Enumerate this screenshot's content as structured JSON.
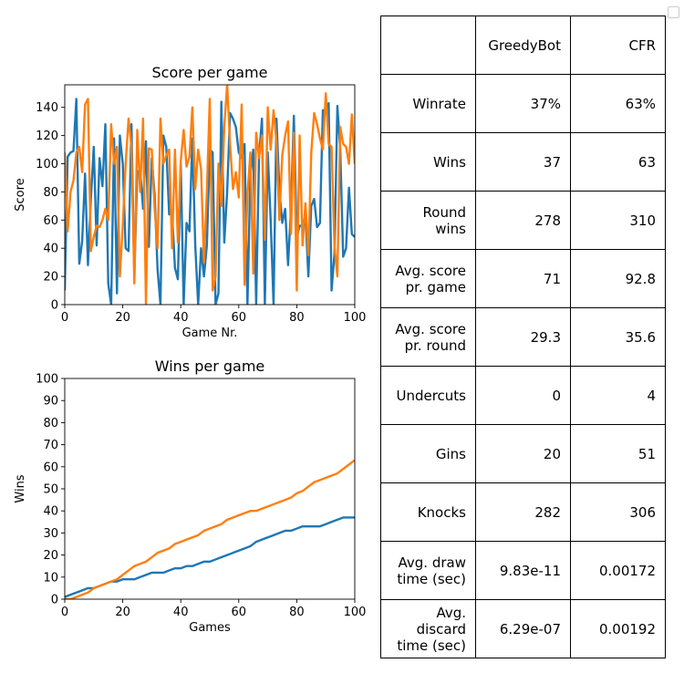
{
  "colors": {
    "greedybot": "#1f77b4",
    "cfr": "#ff7f0e"
  },
  "chart_data": [
    {
      "type": "line",
      "title": "Score per game",
      "xlabel": "Game Nr.",
      "ylabel": "Score",
      "xlim": [
        0,
        100
      ],
      "ylim": [
        0,
        156
      ],
      "xticks": [
        0,
        20,
        40,
        60,
        80,
        100
      ],
      "yticks": [
        0,
        20,
        40,
        60,
        80,
        100,
        120,
        140
      ],
      "grid": false,
      "series": [
        {
          "key": "greedybot",
          "x": [
            0,
            1,
            2,
            3,
            4,
            5,
            6,
            7,
            8,
            9,
            10,
            11,
            12,
            13,
            14,
            15,
            16,
            17,
            18,
            19,
            20,
            21,
            22,
            23,
            24,
            25,
            26,
            27,
            28,
            29,
            30,
            31,
            32,
            33,
            34,
            35,
            36,
            37,
            38,
            39,
            40,
            41,
            42,
            43,
            44,
            45,
            46,
            47,
            48,
            49,
            50,
            51,
            52,
            53,
            54,
            55,
            56,
            57,
            58,
            59,
            60,
            61,
            62,
            63,
            64,
            65,
            66,
            67,
            68,
            69,
            70,
            71,
            72,
            73,
            74,
            75,
            76,
            77,
            78,
            79,
            80,
            81,
            82,
            83,
            84,
            85,
            86,
            87,
            88,
            89,
            90,
            91,
            92,
            93,
            94,
            95,
            96,
            97,
            98,
            99,
            100
          ],
          "y": [
            10,
            105,
            108,
            109,
            146,
            29,
            45,
            93,
            28,
            75,
            112,
            42,
            104,
            84,
            128,
            15,
            0,
            118,
            8,
            120,
            100,
            40,
            38,
            128,
            20,
            94,
            96,
            68,
            116,
            41,
            104,
            78,
            25,
            0,
            120,
            112,
            64,
            66,
            26,
            18,
            100,
            0,
            58,
            52,
            118,
            42,
            0,
            40,
            20,
            42,
            110,
            108,
            0,
            8,
            144,
            44,
            80,
            136,
            132,
            126,
            108,
            104,
            114,
            0,
            92,
            110,
            0,
            106,
            132,
            0,
            108,
            60,
            0,
            132,
            82,
            58,
            68,
            28,
            68,
            134,
            48,
            56,
            56,
            64,
            20,
            70,
            75,
            55,
            58,
            138,
            138,
            143,
            10,
            36,
            141,
            110,
            34,
            40,
            83,
            50,
            48
          ]
        },
        {
          "key": "cfr",
          "x": [
            0,
            1,
            2,
            3,
            4,
            5,
            6,
            7,
            8,
            9,
            10,
            11,
            12,
            13,
            14,
            15,
            16,
            17,
            18,
            19,
            20,
            21,
            22,
            23,
            24,
            25,
            26,
            27,
            28,
            29,
            30,
            31,
            32,
            33,
            34,
            35,
            36,
            37,
            38,
            39,
            40,
            41,
            42,
            43,
            44,
            45,
            46,
            47,
            48,
            49,
            50,
            51,
            52,
            53,
            54,
            55,
            56,
            57,
            58,
            59,
            60,
            61,
            62,
            63,
            64,
            65,
            66,
            67,
            68,
            69,
            70,
            71,
            72,
            73,
            74,
            75,
            76,
            77,
            78,
            79,
            80,
            81,
            82,
            83,
            84,
            85,
            86,
            87,
            88,
            89,
            90,
            91,
            92,
            93,
            94,
            95,
            96,
            97,
            98,
            99,
            100
          ],
          "y": [
            108,
            52,
            80,
            88,
            108,
            112,
            94,
            142,
            146,
            38,
            48,
            56,
            55,
            60,
            68,
            60,
            128,
            100,
            112,
            20,
            56,
            100,
            132,
            112,
            15,
            124,
            80,
            132,
            0,
            111,
            110,
            68,
            40,
            132,
            100,
            106,
            110,
            40,
            110,
            44,
            102,
            124,
            98,
            105,
            140,
            82,
            110,
            96,
            30,
            80,
            146,
            10,
            20,
            100,
            70,
            126,
            156,
            114,
            82,
            94,
            76,
            142,
            14,
            78,
            108,
            22,
            122,
            104,
            120,
            46,
            140,
            110,
            138,
            116,
            60,
            106,
            120,
            130,
            50,
            122,
            10,
            120,
            42,
            72,
            35,
            108,
            136,
            128,
            118,
            110,
            150,
            114,
            112,
            42,
            20,
            126,
            114,
            112,
            100,
            135,
            100
          ]
        }
      ]
    },
    {
      "type": "line",
      "title": "Wins per game",
      "xlabel": "Games",
      "ylabel": "Wins",
      "xlim": [
        0,
        100
      ],
      "ylim": [
        0,
        100
      ],
      "xticks": [
        0,
        20,
        40,
        60,
        80,
        100
      ],
      "yticks": [
        0,
        10,
        20,
        30,
        40,
        50,
        60,
        70,
        80,
        90,
        100
      ],
      "grid": false,
      "series": [
        {
          "key": "greedybot",
          "x": [
            0,
            2,
            4,
            6,
            8,
            10,
            12,
            14,
            16,
            18,
            20,
            22,
            24,
            26,
            28,
            30,
            32,
            34,
            36,
            38,
            40,
            42,
            44,
            46,
            48,
            50,
            52,
            54,
            56,
            58,
            60,
            62,
            64,
            66,
            68,
            70,
            72,
            74,
            76,
            78,
            80,
            82,
            84,
            86,
            88,
            90,
            92,
            94,
            96,
            98,
            100
          ],
          "y": [
            1,
            2,
            3,
            4,
            5,
            5,
            6,
            7,
            8,
            8,
            9,
            9,
            9,
            10,
            11,
            12,
            12,
            12,
            13,
            14,
            14,
            15,
            15,
            16,
            17,
            17,
            18,
            19,
            20,
            21,
            22,
            23,
            24,
            26,
            27,
            28,
            29,
            30,
            31,
            31,
            32,
            33,
            33,
            33,
            33,
            34,
            35,
            36,
            37,
            37,
            37
          ]
        },
        {
          "key": "cfr",
          "x": [
            0,
            2,
            4,
            6,
            8,
            10,
            12,
            14,
            16,
            18,
            20,
            22,
            24,
            26,
            28,
            30,
            32,
            34,
            36,
            38,
            40,
            42,
            44,
            46,
            48,
            50,
            52,
            54,
            56,
            58,
            60,
            62,
            64,
            66,
            68,
            70,
            72,
            74,
            76,
            78,
            80,
            82,
            84,
            86,
            88,
            90,
            92,
            94,
            96,
            98,
            100
          ],
          "y": [
            0,
            0,
            1,
            2,
            3,
            5,
            6,
            7,
            8,
            9,
            11,
            13,
            15,
            16,
            17,
            19,
            21,
            22,
            23,
            25,
            26,
            27,
            28,
            29,
            31,
            32,
            33,
            34,
            36,
            37,
            38,
            39,
            40,
            40,
            41,
            42,
            43,
            44,
            45,
            46,
            48,
            49,
            51,
            53,
            54,
            55,
            56,
            57,
            59,
            61,
            63
          ]
        }
      ]
    }
  ],
  "stats_table": {
    "header": [
      "",
      "GreedyBot",
      "CFR"
    ],
    "rows": [
      {
        "label": [
          "Winrate"
        ],
        "greedybot": "37%",
        "cfr": "63%"
      },
      {
        "label": [
          "Wins"
        ],
        "greedybot": "37",
        "cfr": "63"
      },
      {
        "label": [
          "Round wins"
        ],
        "greedybot": "278",
        "cfr": "310"
      },
      {
        "label": [
          "Avg. score",
          "pr. game"
        ],
        "greedybot": "71",
        "cfr": "92.8"
      },
      {
        "label": [
          "Avg. score",
          "pr. round"
        ],
        "greedybot": "29.3",
        "cfr": "35.6"
      },
      {
        "label": [
          "Undercuts"
        ],
        "greedybot": "0",
        "cfr": "4"
      },
      {
        "label": [
          "Gins"
        ],
        "greedybot": "20",
        "cfr": "51"
      },
      {
        "label": [
          "Knocks"
        ],
        "greedybot": "282",
        "cfr": "306"
      },
      {
        "label": [
          "Avg. draw",
          "time (sec)"
        ],
        "greedybot": "9.83e-11",
        "cfr": "0.00172"
      },
      {
        "label": [
          "Avg. discard",
          "time (sec)"
        ],
        "greedybot": "6.29e-07",
        "cfr": "0.00192"
      }
    ]
  }
}
